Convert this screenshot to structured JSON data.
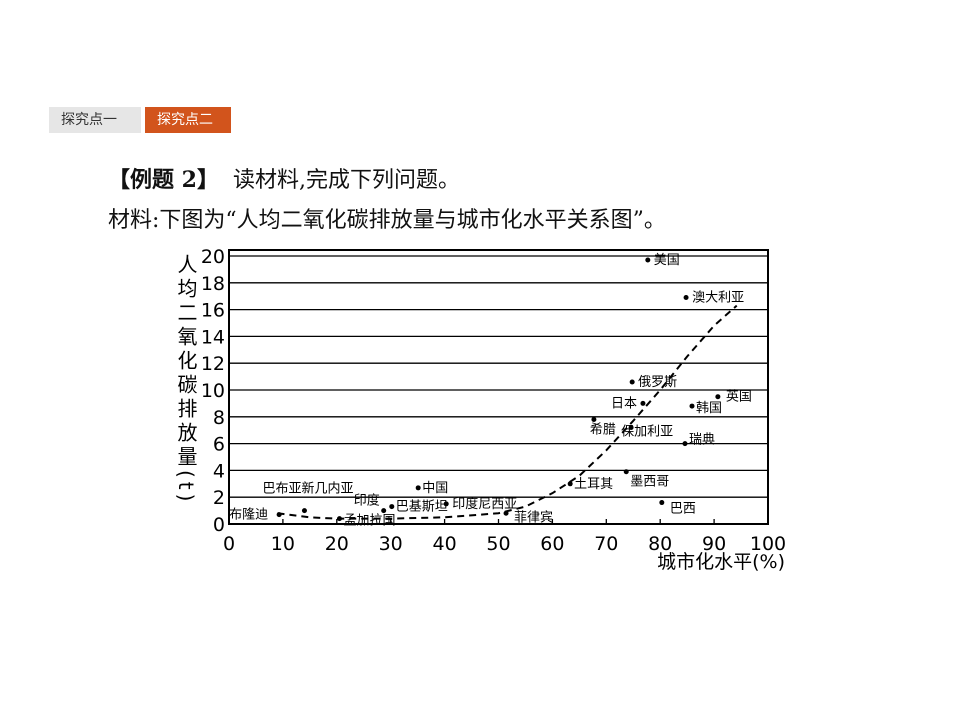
{
  "tabs": [
    "探究点一",
    "探究点二"
  ],
  "question": {
    "heading": "【例题 2】",
    "text": "读材料,完成下列问题。",
    "material": "材料:下图为“人均二氧化碳排放量与城市化水平关系图”。"
  },
  "chart_data": {
    "type": "scatter",
    "y_label": "人均二氧化碳排放量(t)",
    "x_label": "城市化水平(%)",
    "xlim": [
      0,
      100
    ],
    "xticks": [
      0,
      10,
      20,
      30,
      40,
      50,
      60,
      70,
      80,
      90,
      100
    ],
    "ylim": [
      0,
      20
    ],
    "yticks": [
      0,
      2,
      4,
      6,
      8,
      10,
      12,
      14,
      16,
      18,
      20
    ],
    "grid": true,
    "points": [
      {
        "label": "美国",
        "x": 77.7,
        "y": 19.7
      },
      {
        "label": "澳大利亚",
        "x": 84.8,
        "y": 16.9
      },
      {
        "label": "俄罗斯",
        "x": 74.8,
        "y": 10.6
      },
      {
        "label": "日本",
        "x": 76.8,
        "y": 9.0
      },
      {
        "label": "英国",
        "x": 90.7,
        "y": 9.5
      },
      {
        "label": "韩国",
        "x": 85.9,
        "y": 8.8
      },
      {
        "label": "希腊",
        "x": 67.7,
        "y": 7.8
      },
      {
        "label": "保加利亚",
        "x": 74.6,
        "y": 7.2
      },
      {
        "label": "瑞典",
        "x": 84.6,
        "y": 6.0
      },
      {
        "label": "墨西哥",
        "x": 73.7,
        "y": 3.9
      },
      {
        "label": "土耳其",
        "x": 63.3,
        "y": 3.0
      },
      {
        "label": "巴西",
        "x": 80.3,
        "y": 1.6
      },
      {
        "label": "中国",
        "x": 35.1,
        "y": 2.7
      },
      {
        "label": "印度尼西亚",
        "x": 40.3,
        "y": 1.5
      },
      {
        "label": "巴基斯坦",
        "x": 30.2,
        "y": 1.3
      },
      {
        "label": "印度",
        "x": 28.7,
        "y": 1.0
      },
      {
        "label": "菲律宾",
        "x": 51.4,
        "y": 0.8
      },
      {
        "label": "巴布亚新几内亚",
        "x": 14.0,
        "y": 1.0
      },
      {
        "label": "孟加拉国",
        "x": 20.5,
        "y": 0.4
      },
      {
        "label": "布隆迪",
        "x": 9.3,
        "y": 0.7
      }
    ],
    "trend": {
      "x": [
        9,
        15,
        20,
        30,
        40,
        50,
        55,
        60,
        65,
        70,
        75,
        80,
        85,
        90,
        94.2
      ],
      "y": [
        0.8,
        0.5,
        0.4,
        0.4,
        0.5,
        0.8,
        1.3,
        2.3,
        3.6,
        5.5,
        7.7,
        10.0,
        12.5,
        14.8,
        16.3
      ]
    }
  }
}
